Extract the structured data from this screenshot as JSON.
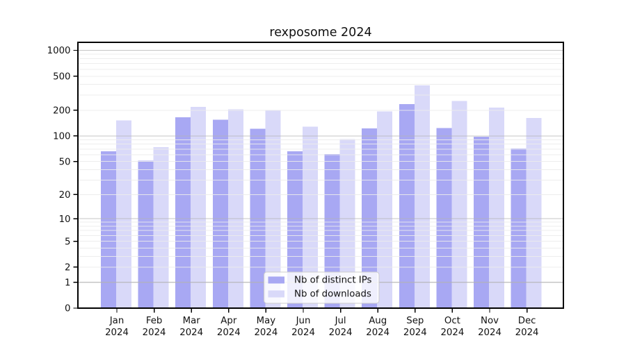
{
  "chart_data": {
    "type": "bar",
    "title": "rexposome 2024",
    "categories": [
      "Jan",
      "Feb",
      "Mar",
      "Apr",
      "May",
      "Jun",
      "Jul",
      "Aug",
      "Sep",
      "Oct",
      "Nov",
      "Dec"
    ],
    "x_year_label": "2024",
    "series": [
      {
        "name": "Nb of distinct IPs",
        "color": "#a8a8f3",
        "values": [
          66,
          51,
          165,
          155,
          122,
          66,
          61,
          123,
          236,
          124,
          98,
          71
        ]
      },
      {
        "name": "Nb of downloads",
        "color": "#d9d9f9",
        "values": [
          152,
          74,
          220,
          206,
          201,
          128,
          92,
          194,
          390,
          256,
          215,
          163
        ]
      }
    ],
    "y_scale": "log1p",
    "y_ticks": [
      0,
      1,
      2,
      5,
      10,
      20,
      50,
      100,
      200,
      500,
      1000
    ],
    "ylim": [
      0,
      1276
    ],
    "xlabel": "",
    "ylabel": "",
    "grid": "horizontal",
    "legend_position": "lower center inside plot"
  },
  "colors": {
    "grid_major": "#b3b3b3",
    "grid_minor": "#ebebeb",
    "axis": "#000000",
    "legend_border": "#cccccc",
    "legend_bg": "rgba(255,255,255,0.82)"
  }
}
